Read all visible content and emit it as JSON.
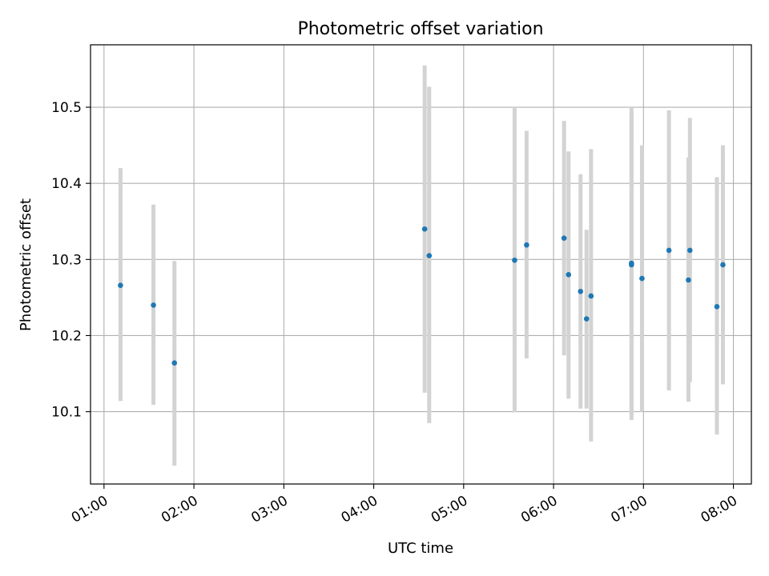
{
  "chart_data": {
    "type": "scatter",
    "title": "Photometric offset variation",
    "xlabel": "UTC time",
    "ylabel": "Photometric offset",
    "x_ticks": [
      "01:00",
      "02:00",
      "03:00",
      "04:00",
      "05:00",
      "06:00",
      "07:00",
      "08:00"
    ],
    "y_ticks": [
      "10.1",
      "10.2",
      "10.3",
      "10.4",
      "10.5"
    ],
    "xlim": [
      "00:51",
      "08:12"
    ],
    "ylim": [
      10.005,
      10.582
    ],
    "grid": true,
    "colors": {
      "point": "#1f77b4",
      "errorbar": "#d3d3d3",
      "grid": "#b0b0b0"
    },
    "points": [
      {
        "x": "01:11",
        "y": 10.266,
        "yerr_low": 10.114,
        "yerr_high": 10.42
      },
      {
        "x": "01:33",
        "y": 10.24,
        "yerr_low": 10.109,
        "yerr_high": 10.372
      },
      {
        "x": "01:47",
        "y": 10.164,
        "yerr_low": 10.029,
        "yerr_high": 10.298
      },
      {
        "x": "04:34",
        "y": 10.34,
        "yerr_low": 10.125,
        "yerr_high": 10.555
      },
      {
        "x": "04:37",
        "y": 10.305,
        "yerr_low": 10.085,
        "yerr_high": 10.527
      },
      {
        "x": "05:34",
        "y": 10.299,
        "yerr_low": 10.099,
        "yerr_high": 10.5
      },
      {
        "x": "05:42",
        "y": 10.319,
        "yerr_low": 10.17,
        "yerr_high": 10.469
      },
      {
        "x": "06:07",
        "y": 10.328,
        "yerr_low": 10.174,
        "yerr_high": 10.482
      },
      {
        "x": "06:10",
        "y": 10.28,
        "yerr_low": 10.117,
        "yerr_high": 10.442
      },
      {
        "x": "06:18",
        "y": 10.258,
        "yerr_low": 10.104,
        "yerr_high": 10.412
      },
      {
        "x": "06:22",
        "y": 10.222,
        "yerr_low": 10.104,
        "yerr_high": 10.339
      },
      {
        "x": "06:25",
        "y": 10.252,
        "yerr_low": 10.061,
        "yerr_high": 10.445
      },
      {
        "x": "06:52",
        "y": 10.295,
        "yerr_low": 10.089,
        "yerr_high": 10.5
      },
      {
        "x": "06:52",
        "y": 10.293,
        "yerr_low": 10.095,
        "yerr_high": 10.493
      },
      {
        "x": "06:59",
        "y": 10.275,
        "yerr_low": 10.1,
        "yerr_high": 10.45
      },
      {
        "x": "07:17",
        "y": 10.312,
        "yerr_low": 10.128,
        "yerr_high": 10.496
      },
      {
        "x": "07:30",
        "y": 10.273,
        "yerr_low": 10.113,
        "yerr_high": 10.434
      },
      {
        "x": "07:31",
        "y": 10.312,
        "yerr_low": 10.139,
        "yerr_high": 10.486
      },
      {
        "x": "07:49",
        "y": 10.238,
        "yerr_low": 10.07,
        "yerr_high": 10.408
      },
      {
        "x": "07:53",
        "y": 10.293,
        "yerr_low": 10.136,
        "yerr_high": 10.45
      }
    ]
  }
}
